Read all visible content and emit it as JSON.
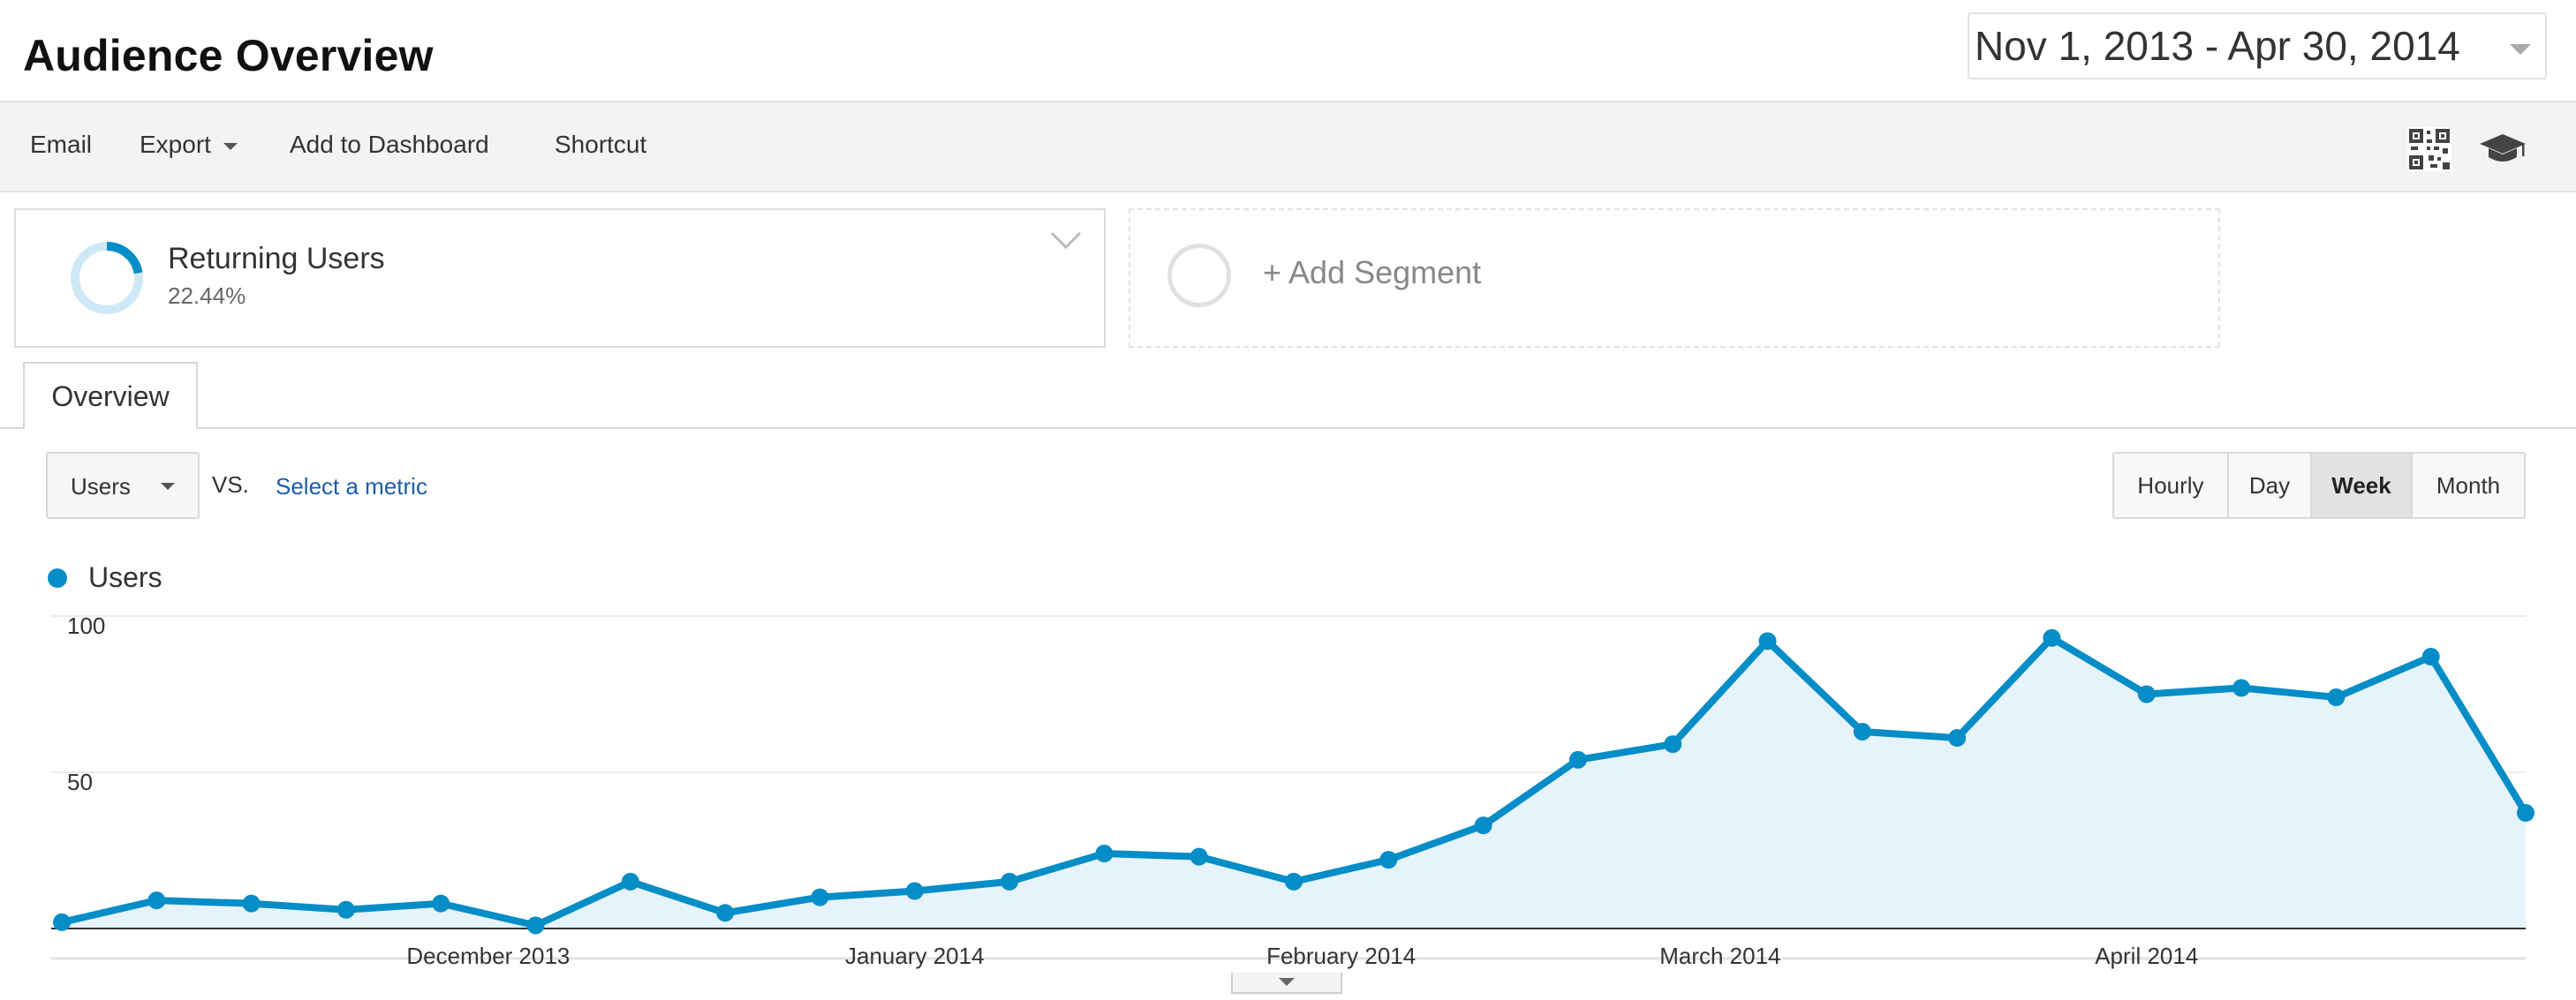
{
  "header": {
    "title": "Audience Overview",
    "date_range": "Nov 1, 2013 - Apr 30, 2014"
  },
  "toolbar": {
    "email": "Email",
    "export": "Export",
    "add_to_dashboard": "Add to Dashboard",
    "shortcut": "Shortcut"
  },
  "segment": {
    "name": "Returning Users",
    "percent": "22.44%",
    "percent_value": 0.2244,
    "add_label": "+ Add Segment"
  },
  "tabs": {
    "overview": "Overview"
  },
  "metric": {
    "selected": "Users",
    "vs": "VS.",
    "select_metric": "Select a metric"
  },
  "time_buttons": {
    "hourly": "Hourly",
    "day": "Day",
    "week": "Week",
    "month": "Month",
    "active": "Week"
  },
  "colors": {
    "series": "#058dc7",
    "area": "#e6f3fa",
    "toolbar_bg": "#f3f3f3"
  },
  "icons": [
    "chevron-down-icon",
    "qr-code-icon",
    "graduation-cap-icon",
    "donut-chart-icon"
  ],
  "chart_data": {
    "type": "area",
    "title": "",
    "xlabel": "",
    "ylabel": "",
    "ylim": [
      0,
      100
    ],
    "yticks": [
      50,
      100
    ],
    "grid": true,
    "legend": "top-left",
    "month_labels": [
      {
        "label": "December 2013",
        "week": 4.5
      },
      {
        "label": "January 2014",
        "week": 9
      },
      {
        "label": "February 2014",
        "week": 13.5
      },
      {
        "label": "March 2014",
        "week": 17.5
      },
      {
        "label": "April 2014",
        "week": 22
      }
    ],
    "series": [
      {
        "name": "Users",
        "values": [
          2,
          9,
          8,
          6,
          8,
          1,
          15,
          5,
          10,
          12,
          15,
          24,
          23,
          15,
          22,
          33,
          54,
          59,
          92,
          63,
          61,
          93,
          75,
          77,
          74,
          87,
          37
        ]
      }
    ]
  }
}
